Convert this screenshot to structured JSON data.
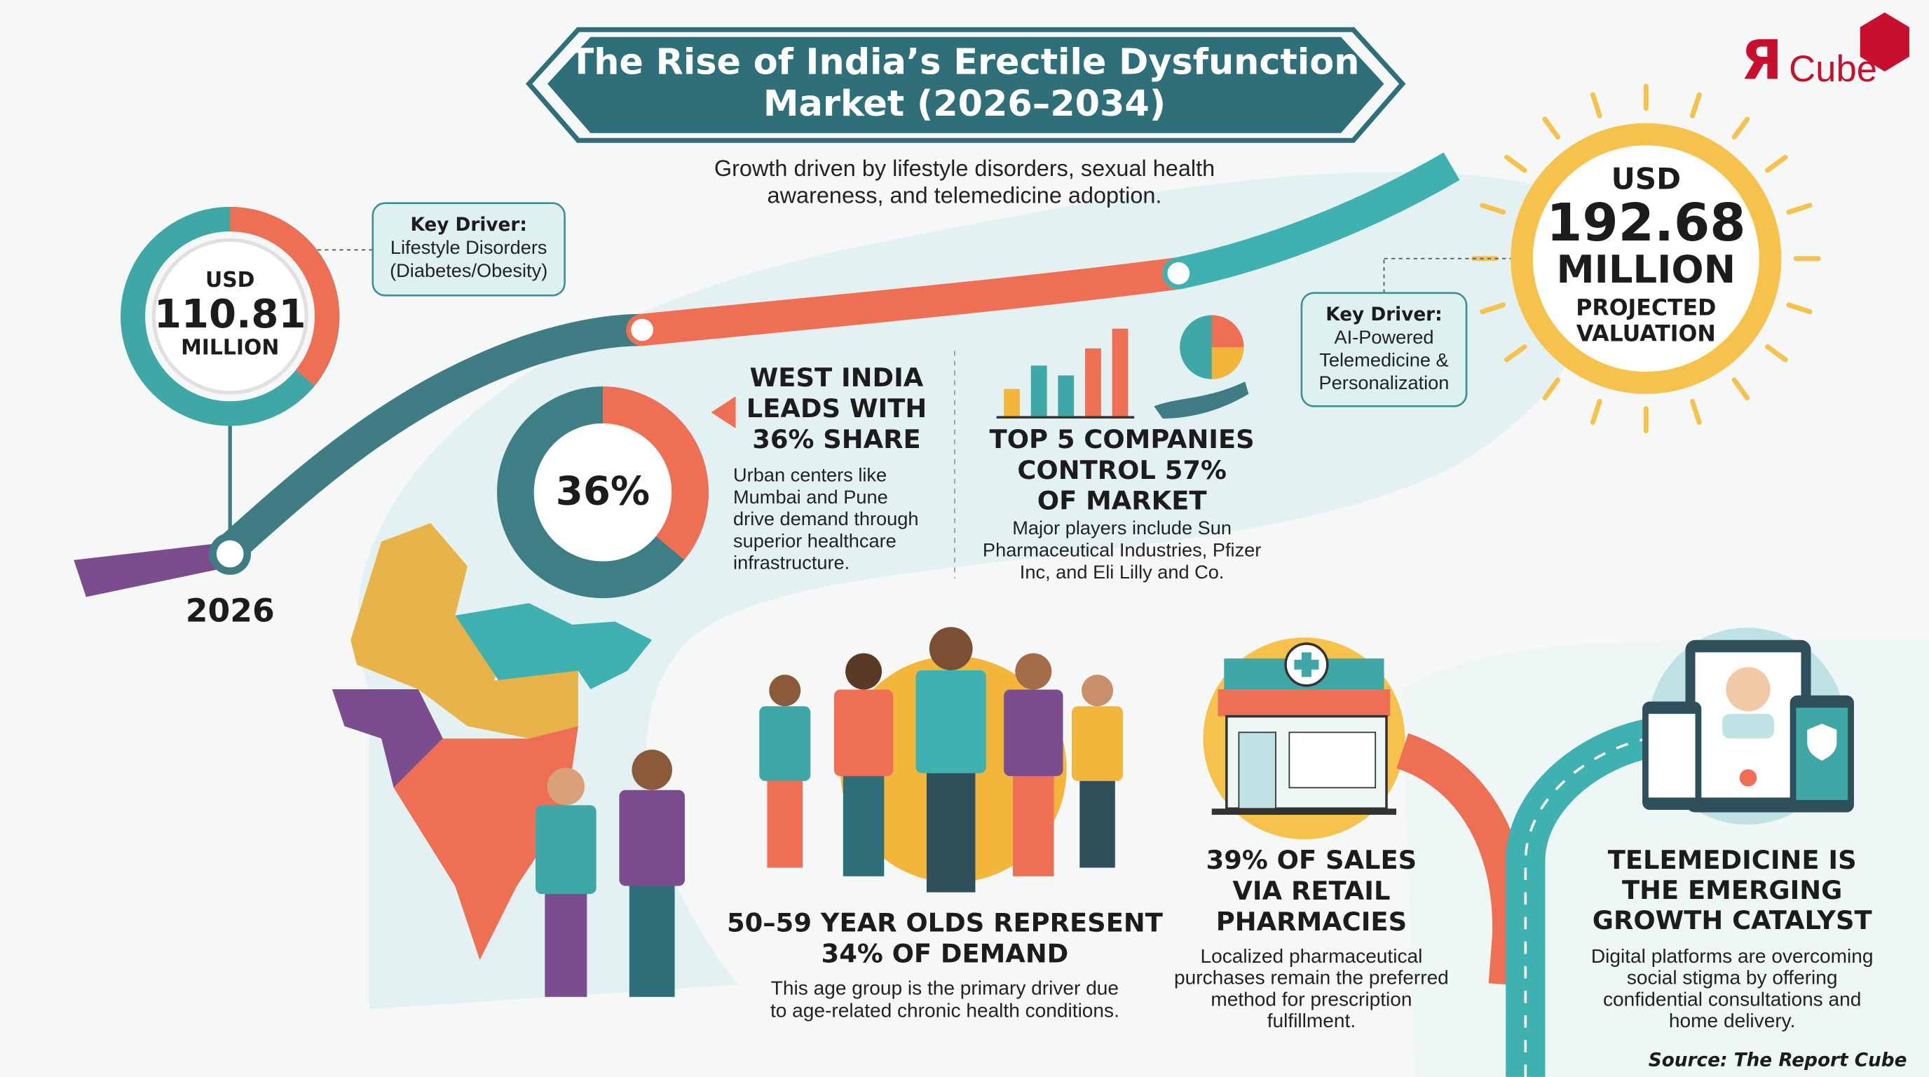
{
  "header": {
    "title": [
      "The Rise of India’s Erectile Dysfunction",
      "Market (2026–2034)"
    ],
    "subtitle": [
      "Growth driven by lifestyle disorders, sexual health",
      "awareness, and telemedicine adoption."
    ]
  },
  "logo": {
    "mark": "Я",
    "text": "Cube"
  },
  "start": {
    "currency": "USD",
    "value": "110.81",
    "unit": "MILLION",
    "year": "2026"
  },
  "driver_left": {
    "heading": "Key Driver:",
    "lines": [
      "Lifestyle Disorders",
      "(Diabetes/Obesity)"
    ]
  },
  "end": {
    "currency": "USD",
    "value": "192.68",
    "unit": "MILLION",
    "lines": [
      "PROJECTED",
      "VALUATION"
    ]
  },
  "driver_right": {
    "heading": "Key Driver:",
    "lines": [
      "AI-Powered",
      "Telemedicine &",
      "Personalization"
    ]
  },
  "west": {
    "share": {
      "value": 36,
      "label": "36%"
    },
    "heading": [
      "WEST INDIA",
      "LEADS WITH",
      "36% SHARE"
    ],
    "body": [
      "Urban centers like",
      "Mumbai and Pune",
      "drive demand through",
      "superior healthcare",
      "infrastructure."
    ]
  },
  "companies": {
    "heading": [
      "TOP 5 COMPANIES",
      "CONTROL 57%",
      "OF MARKET"
    ],
    "body": [
      "Major players include Sun",
      "Pharmaceutical Industries, Pfizer",
      "Inc, and Eli Lilly and Co."
    ]
  },
  "age": {
    "heading": [
      "50–59 YEAR OLDS REPRESENT",
      "34% OF DEMAND"
    ],
    "body": [
      "This age group is the primary driver due",
      "to age-related chronic health conditions."
    ]
  },
  "pharmacy": {
    "heading": [
      "39% OF SALES",
      "VIA RETAIL",
      "PHARMACIES"
    ],
    "body": [
      "Localized pharmaceutical",
      "purchases remain the preferred",
      "method for prescription",
      "fulfillment."
    ]
  },
  "telemedicine": {
    "heading": [
      "TELEMEDICINE IS",
      "THE EMERGING",
      "GROWTH CATALYST"
    ],
    "body": [
      "Digital platforms are overcoming",
      "social stigma by offering",
      "confidential consultations and",
      "home delivery."
    ]
  },
  "source": "Source: The Report Cube"
}
